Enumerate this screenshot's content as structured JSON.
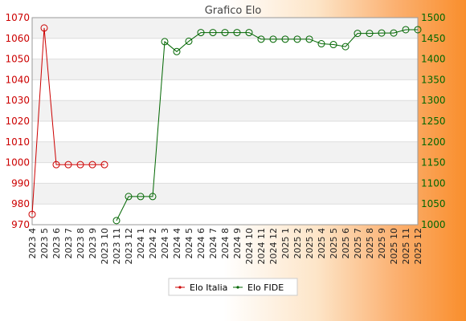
{
  "chart_data": {
    "type": "line",
    "title": "Grafico Elo",
    "categories": [
      "2023 4",
      "2023 5",
      "2023 6",
      "2023 7",
      "2023 8",
      "2023 9",
      "2023 10",
      "2023 11",
      "2023 12",
      "2024 1",
      "2024 2",
      "2024 3",
      "2024 4",
      "2024 5",
      "2024 6",
      "2024 7",
      "2024 8",
      "2024 9",
      "2024 10",
      "2024 11",
      "2024 12",
      "2025 1",
      "2025 2",
      "2025 3",
      "2025 4",
      "2025 5",
      "2025 6",
      "2025 7",
      "2025 8",
      "2025 9",
      "2025 10",
      "2025 11",
      "2025 12"
    ],
    "y_left": {
      "ylim": [
        970,
        1070
      ],
      "ticks": [
        970,
        980,
        990,
        1000,
        1010,
        1020,
        1030,
        1040,
        1050,
        1060,
        1070
      ],
      "color": "#cc0000"
    },
    "y_right": {
      "ylim": [
        1000,
        1500
      ],
      "ticks": [
        1000,
        1050,
        1100,
        1150,
        1200,
        1250,
        1300,
        1350,
        1400,
        1450,
        1500
      ],
      "color": "#006600"
    },
    "series": [
      {
        "name": "Elo Italia",
        "axis": "left",
        "color": "#cc0000",
        "values": [
          975,
          1065,
          999,
          999,
          999,
          999,
          999,
          null,
          null,
          null,
          null,
          null,
          null,
          null,
          null,
          null,
          null,
          null,
          null,
          null,
          null,
          null,
          null,
          null,
          null,
          null,
          null,
          null,
          null,
          null,
          null,
          null,
          null
        ]
      },
      {
        "name": "Elo FIDE",
        "axis": "right",
        "color": "#006600",
        "values": [
          null,
          null,
          null,
          null,
          null,
          null,
          null,
          1010,
          1068,
          1068,
          1068,
          1442,
          1418,
          1443,
          1464,
          1464,
          1464,
          1464,
          1464,
          1448,
          1448,
          1448,
          1448,
          1448,
          1437,
          1435,
          1430,
          1462,
          1462,
          1463,
          1463,
          1471,
          1471
        ]
      }
    ],
    "grid": true,
    "legend_position": "bottom-center"
  }
}
